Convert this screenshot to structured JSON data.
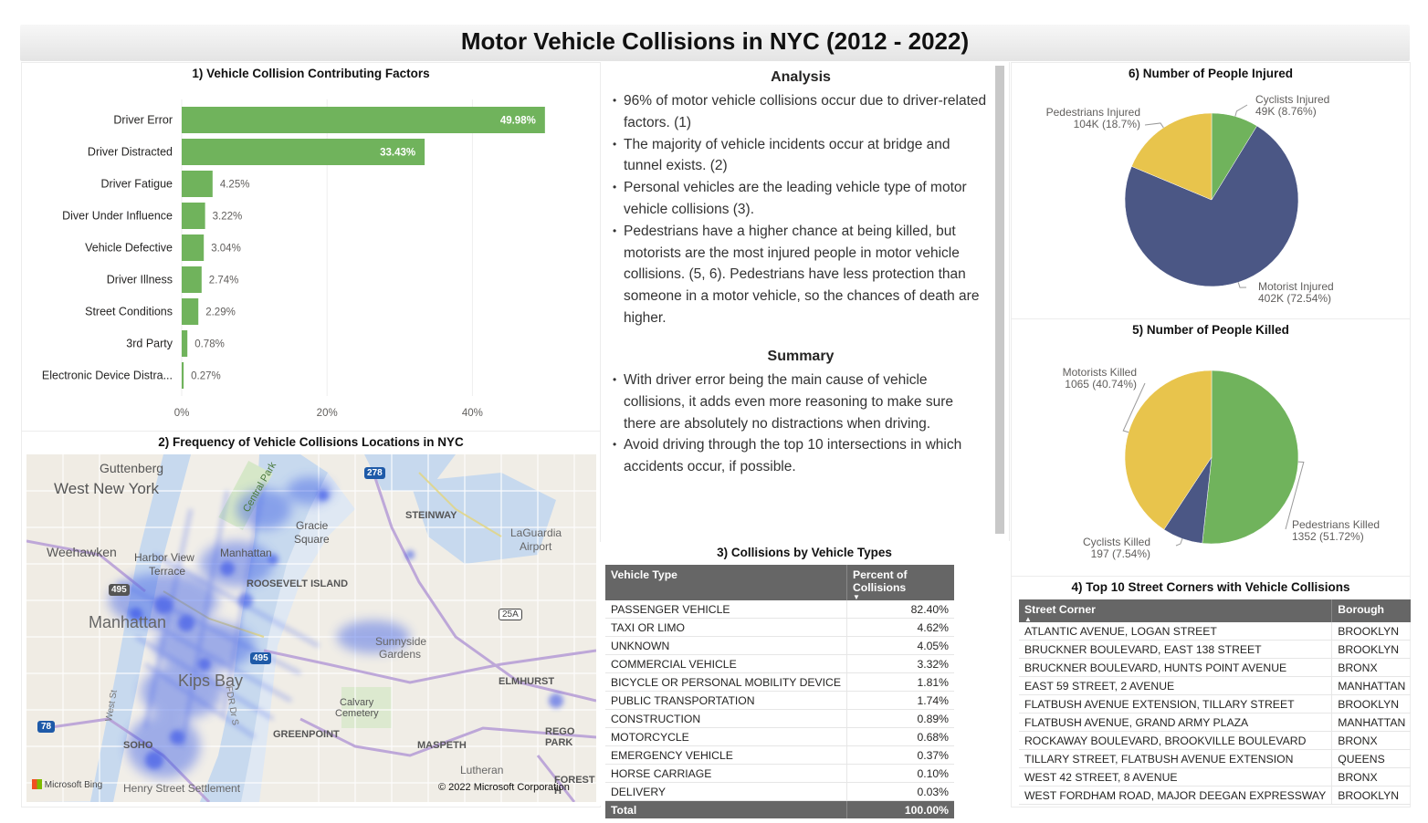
{
  "page": {
    "title": "Motor Vehicle Collisions in NYC (2012 - 2022)"
  },
  "colors": {
    "green": "#70b35c",
    "navy": "#4b5785",
    "yellow": "#e8c44c",
    "header_gray": "#666666"
  },
  "factors_chart": {
    "title": "1) Vehicle Collision Contributing Factors",
    "chart_data": {
      "type": "bar",
      "orientation": "horizontal",
      "title": "1) Vehicle Collision Contributing Factors",
      "categories": [
        "Driver Error",
        "Driver Distracted",
        "Driver Fatigue",
        "Diver Under Influence",
        "Vehicle Defective",
        "Driver Illness",
        "Street Conditions",
        "3rd Party",
        "Electronic Device Distra..."
      ],
      "values": [
        49.98,
        33.43,
        4.25,
        3.22,
        3.04,
        2.74,
        2.29,
        0.78,
        0.27
      ],
      "value_labels": [
        "49.98%",
        "33.43%",
        "4.25%",
        "3.22%",
        "3.04%",
        "2.74%",
        "2.29%",
        "0.78%",
        "0.27%"
      ],
      "xlim": [
        0,
        60
      ],
      "xticks": [
        0,
        20,
        40
      ],
      "xtick_labels": [
        "0%",
        "20%",
        "40%"
      ],
      "color": "#70b35c"
    }
  },
  "map": {
    "title": "2) Frequency of Vehicle Collisions Locations in NYC",
    "labels": {
      "guttenberg": "Guttenberg",
      "west_new_york": "West New York",
      "weehawken": "Weehawken",
      "harbor_view": "Harbor View",
      "terrace": "Terrace",
      "manhattan_small": "Manhattan",
      "manhattan_big": "Manhattan",
      "central_park": "Central Park",
      "gracie": "Gracie",
      "square": "Square",
      "roosevelt": "ROOSEVELT ISLAND",
      "steinway": "STEINWAY",
      "laguardia": "LaGuardia",
      "airport": "Airport",
      "sunnyside": "Sunnyside",
      "gardens": "Gardens",
      "kips_bay": "Kips Bay",
      "calvary": "Calvary",
      "cemetery": "Cemetery",
      "elmhurst": "ELMHURST",
      "greenpoint": "GREENPOINT",
      "maspeth": "MASPETH",
      "rego_park": "REGO PARK",
      "soho": "SOHO",
      "forest_h": "FOREST H",
      "lutheran": "Lutheran",
      "henry_street": "Henry Street Settlement",
      "west_st": "West St",
      "fdr_dr": "FDR Dr S",
      "shield_278": "278",
      "shield_495a": "495",
      "shield_495b": "495",
      "shield_25a": "25A",
      "shield_78": "78",
      "bing": "Microsoft Bing",
      "copyright": "© 2022 Microsoft Corporation"
    }
  },
  "analysis": {
    "heading": "Analysis",
    "bullets": [
      "96% of motor vehicle collisions occur due to driver-related factors. (1)",
      "The majority of vehicle incidents occur at bridge and tunnel exists. (2)",
      "Personal vehicles are the leading vehicle type of motor vehicle collisions (3).",
      "Pedestrians have a higher chance at being killed, but motorists are the most injured people in motor vehicle collisions. (5, 6). Pedestrians have less protection than someone in a motor vehicle, so the chances of death are higher."
    ],
    "summary_heading": "Summary",
    "summary_bullets": [
      "With driver error being the main cause of vehicle collisions, it adds even more reasoning to make sure there are absolutely no distractions when driving.",
      "Avoid driving through the top 10 intersections in which accidents occur, if possible."
    ]
  },
  "vehicle_types": {
    "title": "3) Collisions by Vehicle Types",
    "columns": [
      "Vehicle Type",
      "Percent of Collisions"
    ],
    "sort_indicator": "▼",
    "rows": [
      [
        "PASSENGER VEHICLE",
        "82.40%"
      ],
      [
        "TAXI OR LIMO",
        "4.62%"
      ],
      [
        "UNKNOWN",
        "4.05%"
      ],
      [
        "COMMERCIAL VEHICLE",
        "3.32%"
      ],
      [
        "BICYCLE OR PERSONAL MOBILITY DEVICE",
        "1.81%"
      ],
      [
        "PUBLIC TRANSPORTATION",
        "1.74%"
      ],
      [
        "CONSTRUCTION",
        "0.89%"
      ],
      [
        "MOTORCYCLE",
        "0.68%"
      ],
      [
        "EMERGENCY VEHICLE",
        "0.37%"
      ],
      [
        "HORSE CARRIAGE",
        "0.10%"
      ],
      [
        "DELIVERY",
        "0.03%"
      ]
    ],
    "total_label": "Total",
    "total_value": "100.00%"
  },
  "injured_chart": {
    "title": "6) Number of People Injured",
    "chart_data": {
      "type": "pie",
      "title": "6) Number of People Injured",
      "labels": [
        "Cyclists Injured",
        "Motorist Injured",
        "Pedestrians Injured"
      ],
      "values": [
        8.76,
        72.54,
        18.7
      ],
      "value_labels": [
        "49K (8.76%)",
        "402K (72.54%)",
        "104K (18.7%)"
      ],
      "colors": [
        "#70b35c",
        "#4b5785",
        "#e8c44c"
      ]
    }
  },
  "killed_chart": {
    "title": "5) Number of People Killed",
    "chart_data": {
      "type": "pie",
      "title": "5) Number of People Killed",
      "labels": [
        "Pedestrians Killed",
        "Cyclists Killed",
        "Motorists Killed"
      ],
      "values": [
        51.72,
        7.54,
        40.74
      ],
      "value_labels": [
        "1352 (51.72%)",
        "197 (7.54%)",
        "1065 (40.74%)"
      ],
      "colors": [
        "#70b35c",
        "#4b5785",
        "#e8c44c"
      ]
    }
  },
  "street_corners": {
    "title": "4) Top 10 Street Corners with Vehicle Collisions",
    "columns": [
      "Street Corner",
      "Borough"
    ],
    "sort_indicator": "▲",
    "rows": [
      [
        "ATLANTIC AVENUE, LOGAN STREET",
        "BROOKLYN"
      ],
      [
        "BRUCKNER BOULEVARD, EAST 138 STREET",
        "BROOKLYN"
      ],
      [
        "BRUCKNER BOULEVARD, HUNTS POINT AVENUE",
        "BRONX"
      ],
      [
        "EAST 59 STREET, 2 AVENUE",
        "MANHATTAN"
      ],
      [
        "FLATBUSH AVENUE EXTENSION, TILLARY STREET",
        "BROOKLYN"
      ],
      [
        "FLATBUSH AVENUE, GRAND ARMY PLAZA",
        "MANHATTAN"
      ],
      [
        "ROCKAWAY BOULEVARD, BROOKVILLE BOULEVARD",
        "BRONX"
      ],
      [
        "TILLARY STREET, FLATBUSH AVENUE EXTENSION",
        "QUEENS"
      ],
      [
        "WEST 42 STREET, 8 AVENUE",
        "BRONX"
      ],
      [
        "WEST FORDHAM ROAD, MAJOR DEEGAN EXPRESSWAY",
        "BROOKLYN"
      ]
    ]
  }
}
